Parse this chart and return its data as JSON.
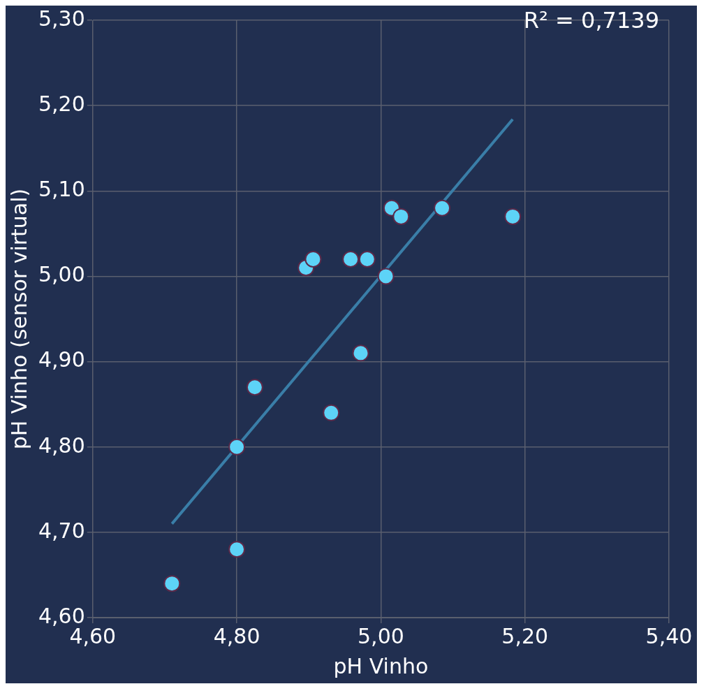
{
  "chart_data": {
    "type": "scatter",
    "xlabel": "pH Vinho",
    "ylabel": "pH Vinho (sensor virtual)",
    "annotations": [
      "R² = 0,7139"
    ],
    "xlim": [
      4.6,
      5.4
    ],
    "ylim": [
      4.6,
      5.3
    ],
    "xticks": [
      {
        "value": 4.6,
        "label": "4,60"
      },
      {
        "value": 4.8,
        "label": "4,80"
      },
      {
        "value": 5.0,
        "label": "5,00"
      },
      {
        "value": 5.2,
        "label": "5,20"
      },
      {
        "value": 5.4,
        "label": "5,40"
      }
    ],
    "yticks": [
      {
        "value": 4.6,
        "label": "4,60"
      },
      {
        "value": 4.7,
        "label": "4,70"
      },
      {
        "value": 4.8,
        "label": "4,80"
      },
      {
        "value": 4.9,
        "label": "4,90"
      },
      {
        "value": 5.0,
        "label": "5,00"
      },
      {
        "value": 5.1,
        "label": "5,10"
      },
      {
        "value": 5.2,
        "label": "5,20"
      },
      {
        "value": 5.3,
        "label": "5,30"
      }
    ],
    "grid": true,
    "legend": false,
    "series": [
      {
        "color": "#5dd3f7",
        "marker": "circle",
        "x": [
          4.71,
          4.8,
          4.8,
          4.825,
          4.931,
          4.972,
          4.896,
          4.906,
          4.958,
          4.981,
          5.007,
          5.015,
          5.028,
          5.085,
          5.183
        ],
        "values": [
          4.64,
          4.68,
          4.8,
          4.87,
          4.84,
          4.91,
          5.01,
          5.02,
          5.02,
          5.02,
          5.0,
          5.08,
          5.07,
          5.08,
          5.07
        ]
      },
      {
        "type": "line",
        "color": "#3a7ea8",
        "x": [
          4.71,
          5.183
        ],
        "values": [
          4.71,
          5.184
        ]
      }
    ]
  }
}
